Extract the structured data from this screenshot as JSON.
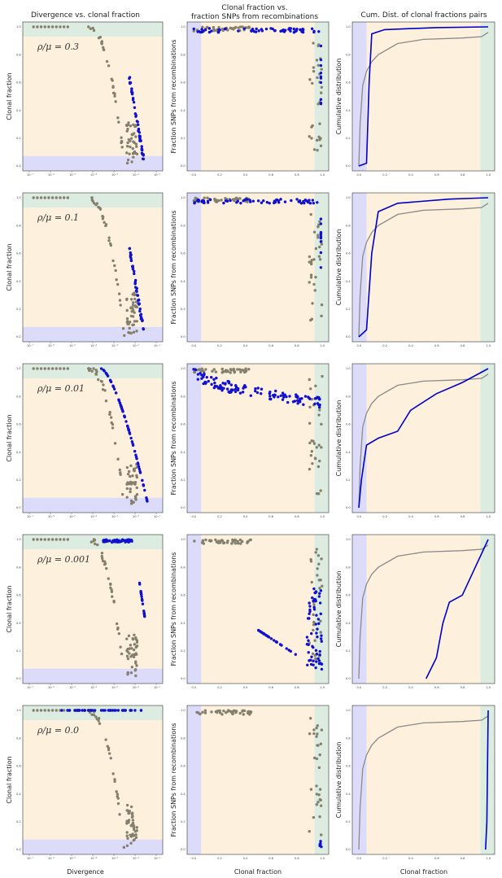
{
  "figure": {
    "col_titles": [
      "Divergence vs. clonal fraction",
      "Clonal fraction vs.",
      "Cum. Dist. of clonal fractions pairs"
    ],
    "col_subtitle": "fraction SNPs from recombinations",
    "ylabels": [
      "Clonal fraction",
      "Fraction SNPs from recombinations",
      "Cumulative distribution"
    ],
    "xlabels": [
      "Divergence",
      "Clonal fraction",
      "Clonal fraction"
    ],
    "row_labels": [
      "ρ/μ = 0.3",
      "ρ/μ = 0.1",
      "ρ/μ = 0.01",
      "ρ/μ = 0.001",
      "ρ/μ = 0.0"
    ],
    "log_ticks": [
      "10⁻⁷",
      "10⁻⁶",
      "10⁻⁵",
      "10⁻⁴",
      "10⁻³",
      "10⁻²",
      "10⁻¹"
    ],
    "lin_ticks": [
      "0.0",
      "0.2",
      "0.4",
      "0.6",
      "0.8",
      "1.0"
    ]
  },
  "colors": {
    "blue_points": "#1010d0",
    "grey_points": "#857f6e",
    "band_blue": "#dcdcfa",
    "band_orange": "#fdf1de",
    "band_green": "#dcece0",
    "cdf_blue": "#0000c8",
    "cdf_grey": "#8a8a8a"
  },
  "chart_data": [
    {
      "type": "scatter",
      "panel": "row1-col1",
      "rho_mu": 0.3,
      "xscale": "log",
      "xlim": [
        1e-07,
        0.1
      ],
      "ylim": [
        0,
        1
      ],
      "series": [
        {
          "values_x": [
            3e-07,
            1e-06,
            3e-06,
            1e-05,
            3e-05,
            0.0001,
            0.0005,
            0.001,
            0.002,
            0.003,
            0.004,
            0.005,
            0.006,
            0.007,
            0.01,
            0.02,
            0.03,
            0.05
          ],
          "values_y": [
            1.0,
            1.0,
            1.0,
            0.99,
            0.98,
            0.97,
            0.95,
            0.92,
            0.86,
            0.7,
            0.45,
            0.3,
            0.22,
            0.15,
            0.1,
            0.05,
            0.03,
            0.01
          ]
        },
        {
          "values_x": [
            0.006,
            0.008,
            0.01,
            0.012,
            0.015,
            0.018,
            0.02,
            0.025
          ],
          "values_y": [
            0.6,
            0.48,
            0.4,
            0.3,
            0.25,
            0.18,
            0.13,
            0.08
          ]
        }
      ]
    },
    {
      "type": "scatter",
      "panel": "row1-col2",
      "ylim": [
        0,
        1
      ],
      "xlim": [
        0,
        1
      ],
      "series": [
        {
          "values_x": [
            0.0,
            0.05,
            0.1,
            0.2,
            0.3,
            0.45,
            0.6,
            0.8,
            0.95,
            1.0
          ],
          "values_y": [
            1.0,
            1.0,
            0.99,
            0.99,
            0.98,
            0.98,
            0.99,
            0.99,
            0.99,
            1.0
          ]
        },
        {
          "values_x": [
            0.0,
            0.1,
            0.2,
            0.4,
            0.6,
            0.92,
            0.96,
            1.0
          ],
          "values_y": [
            0.98,
            0.97,
            0.96,
            0.96,
            0.96,
            0.98,
            0.9,
            0.6
          ]
        }
      ]
    },
    {
      "type": "line",
      "panel": "row1-col3",
      "xlim": [
        0,
        1
      ],
      "ylim": [
        0,
        1
      ],
      "series": [
        {
          "x": [
            0.0,
            0.02,
            0.04,
            0.06,
            0.1,
            0.2,
            0.4,
            0.6,
            0.8,
            0.95,
            1.0
          ],
          "y": [
            0.0,
            0.35,
            0.6,
            0.72,
            0.78,
            0.82,
            0.9,
            0.92,
            0.93,
            0.94,
            0.97
          ]
        },
        {
          "x": [
            0.0,
            0.06,
            0.08,
            0.1,
            0.15,
            0.4,
            0.6,
            0.8,
            1.0
          ],
          "y": [
            0.0,
            0.02,
            0.6,
            0.95,
            0.98,
            0.99,
            0.995,
            0.997,
            1.0
          ]
        }
      ]
    },
    {
      "type": "scatter",
      "panel": "row2-col1",
      "rho_mu": 0.1,
      "xscale": "log",
      "xlim": [
        1e-07,
        0.1
      ],
      "ylim": [
        0,
        1
      ]
    },
    {
      "type": "scatter",
      "panel": "row2-col2",
      "xlim": [
        0,
        1
      ],
      "ylim": [
        0,
        1
      ]
    },
    {
      "type": "line",
      "panel": "row2-col3",
      "xlim": [
        0,
        1
      ],
      "ylim": [
        0,
        1
      ]
    },
    {
      "type": "scatter",
      "panel": "row3-col1",
      "rho_mu": 0.01,
      "xscale": "log",
      "xlim": [
        1e-07,
        0.1
      ],
      "ylim": [
        0,
        1
      ]
    },
    {
      "type": "scatter",
      "panel": "row3-col2",
      "xlim": [
        0,
        1
      ],
      "ylim": [
        0,
        1
      ]
    },
    {
      "type": "line",
      "panel": "row3-col3",
      "xlim": [
        0,
        1
      ],
      "ylim": [
        0,
        1
      ]
    },
    {
      "type": "scatter",
      "panel": "row4-col1",
      "rho_mu": 0.001,
      "xscale": "log",
      "xlim": [
        1e-07,
        0.1
      ],
      "ylim": [
        0,
        1
      ]
    },
    {
      "type": "scatter",
      "panel": "row4-col2",
      "xlim": [
        0,
        1
      ],
      "ylim": [
        0,
        1
      ]
    },
    {
      "type": "line",
      "panel": "row4-col3",
      "xlim": [
        0,
        1
      ],
      "ylim": [
        0,
        1
      ]
    },
    {
      "type": "scatter",
      "panel": "row5-col1",
      "rho_mu": 0.0,
      "xscale": "log",
      "xlim": [
        1e-07,
        0.1
      ],
      "ylim": [
        0,
        1
      ]
    },
    {
      "type": "scatter",
      "panel": "row5-col2",
      "xlim": [
        0,
        1
      ],
      "ylim": [
        0,
        1
      ]
    },
    {
      "type": "line",
      "panel": "row5-col3",
      "xlim": [
        0,
        1
      ],
      "ylim": [
        0,
        1
      ]
    }
  ]
}
